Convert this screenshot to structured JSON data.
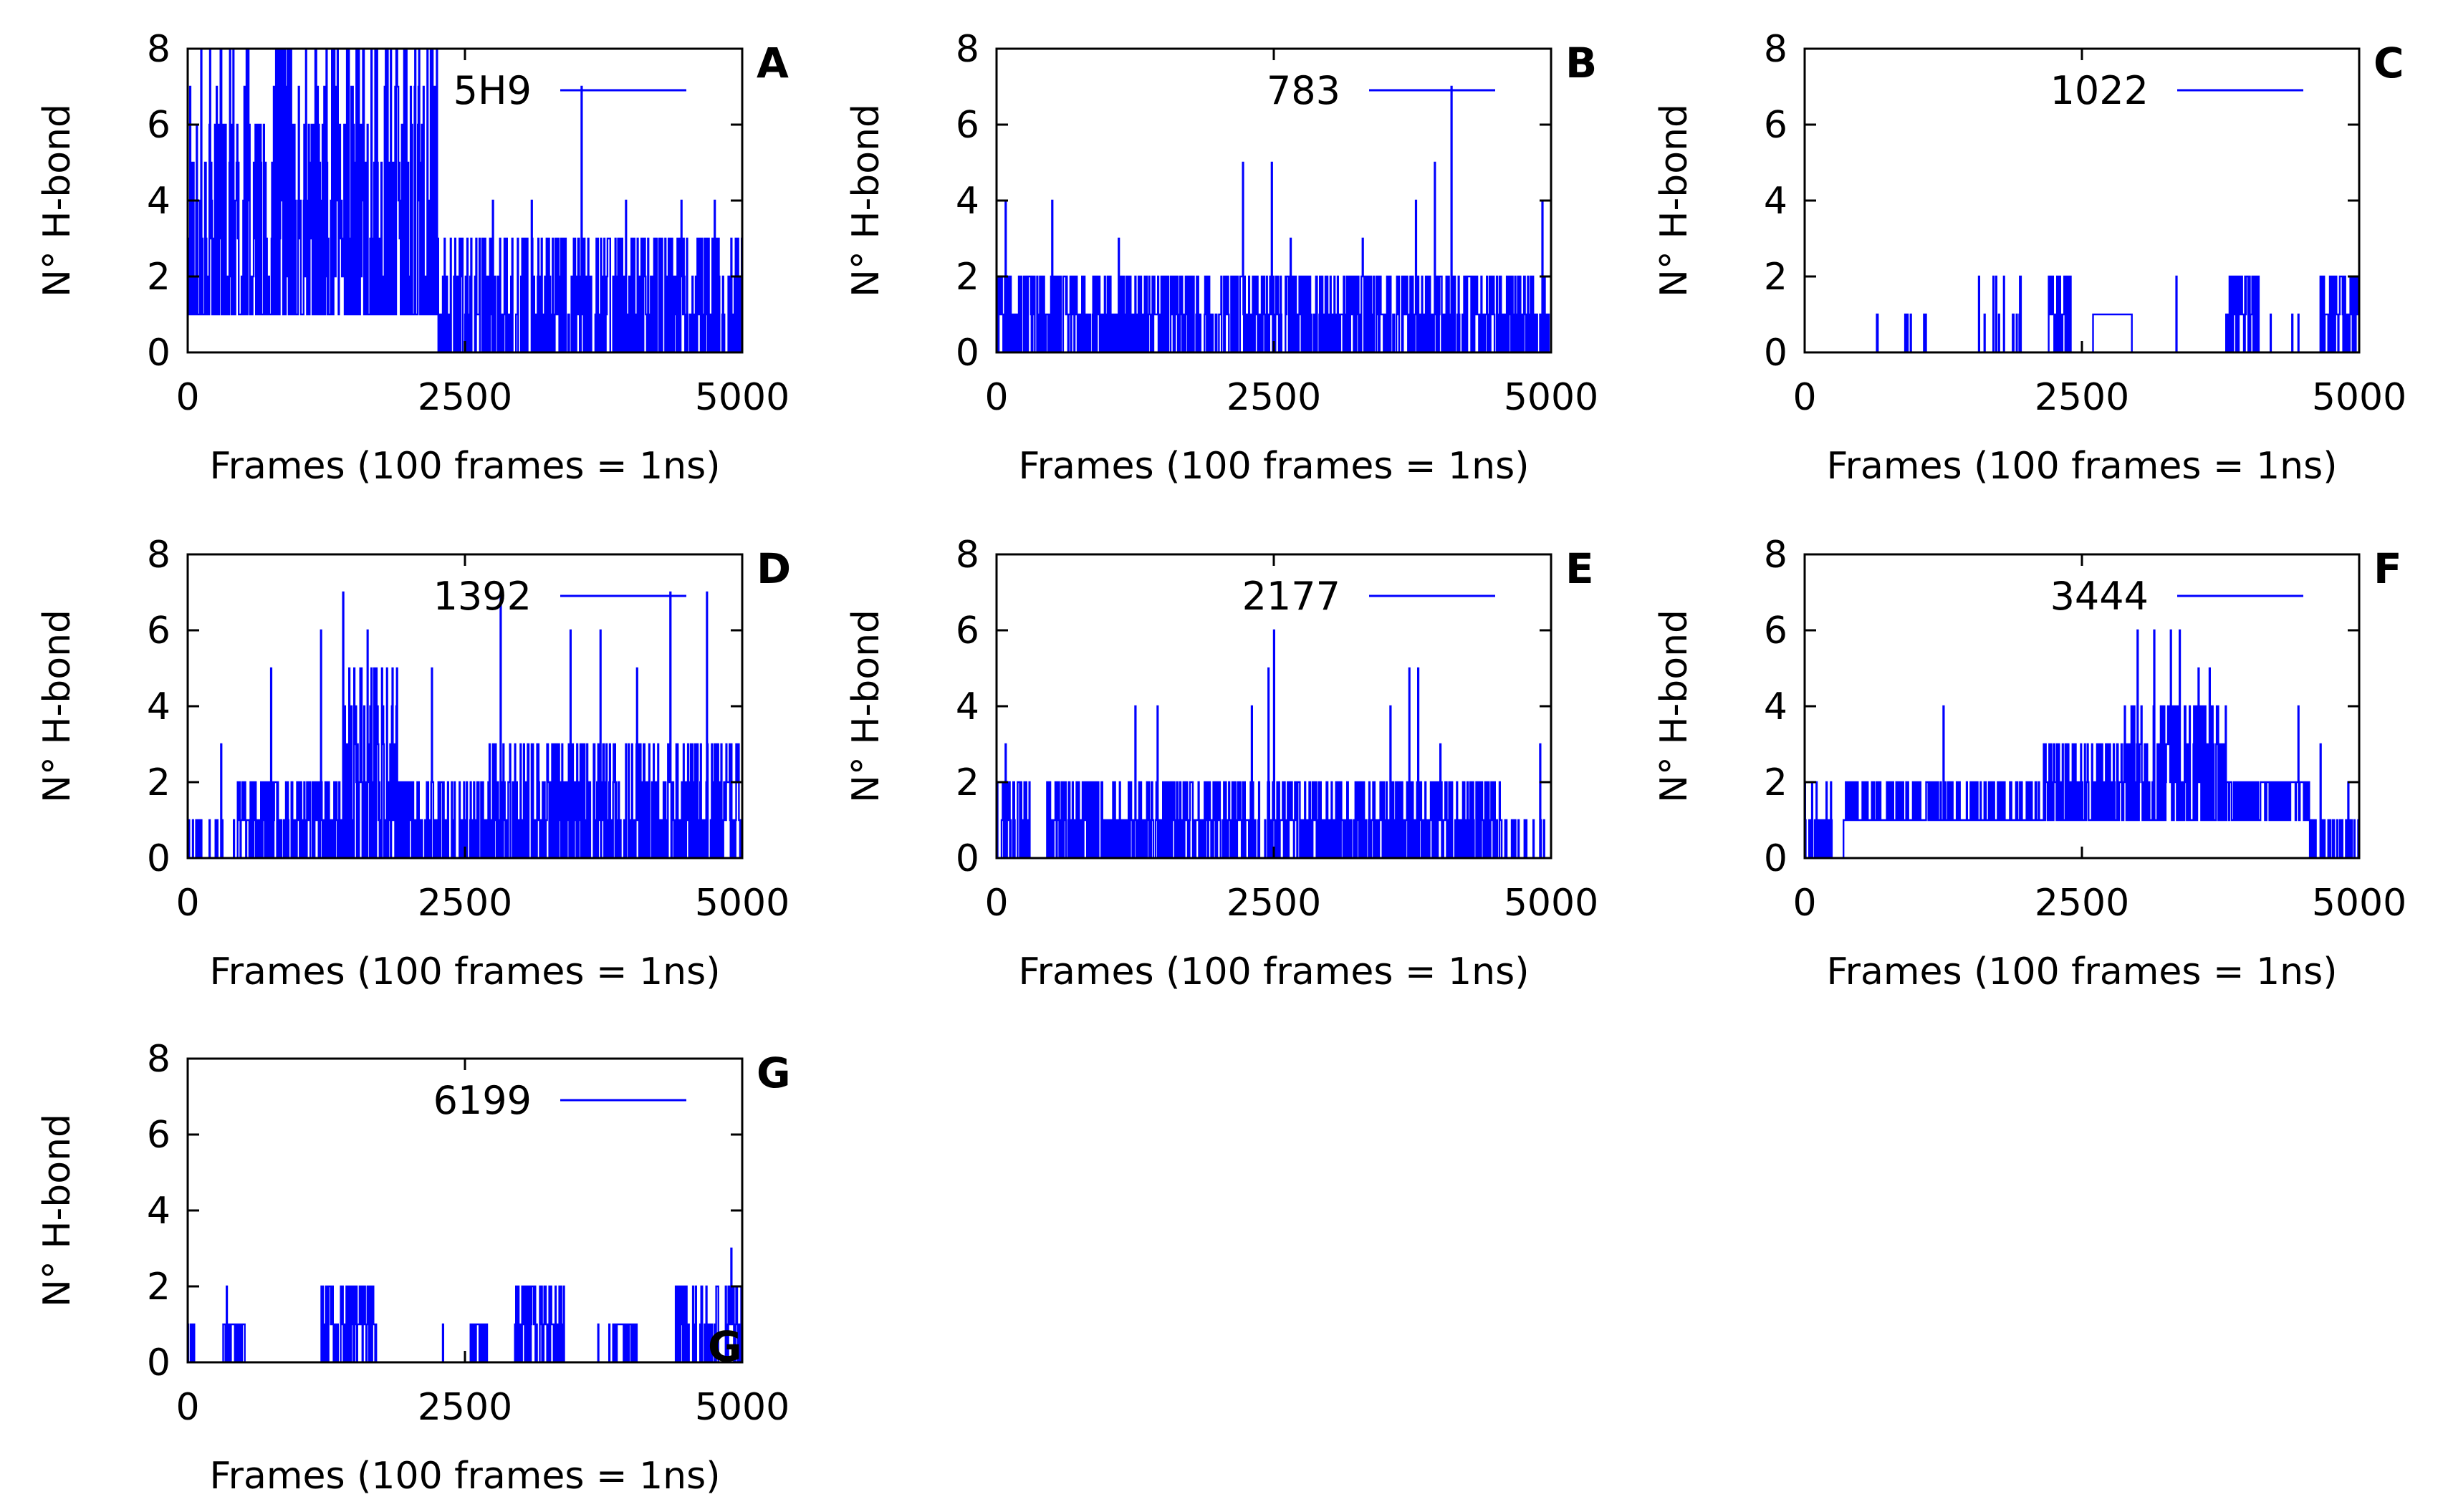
{
  "figure": {
    "series_color": "#0000ff",
    "axis_color": "#000000"
  },
  "chart_data": [
    {
      "panel": "A",
      "type": "line",
      "legend": "5H9",
      "xlabel": "Frames (100 frames = 1ns)",
      "ylabel": "N° H-bond",
      "xlim": [
        0,
        5000
      ],
      "ylim": [
        0,
        8
      ],
      "xticks": [
        "0",
        "2500",
        "5000"
      ],
      "yticks": [
        "0",
        "2",
        "4",
        "6",
        "8"
      ],
      "regimes": [
        {
          "from": 0,
          "to": 2250,
          "base": 1,
          "max": 8,
          "p": 0.6
        },
        {
          "from": 2250,
          "to": 5000,
          "base": 0,
          "max": 3,
          "p": 0.5
        }
      ],
      "spikes": [
        [
          120,
          8
        ],
        [
          380,
          8
        ],
        [
          900,
          8
        ],
        [
          1250,
          8
        ],
        [
          1800,
          8
        ],
        [
          2050,
          8
        ],
        [
          3550,
          7
        ],
        [
          2750,
          4
        ],
        [
          3100,
          4
        ],
        [
          4450,
          4
        ],
        [
          4750,
          4
        ],
        [
          3950,
          4
        ]
      ],
      "seed": 11
    },
    {
      "panel": "B",
      "type": "line",
      "legend": "783",
      "xlabel": "Frames (100 frames = 1ns)",
      "ylabel": "N° H-bond",
      "xlim": [
        0,
        5000
      ],
      "ylim": [
        0,
        8
      ],
      "xticks": [
        "0",
        "2500",
        "5000"
      ],
      "yticks": [
        "0",
        "2",
        "4",
        "6",
        "8"
      ],
      "regimes": [
        {
          "from": 0,
          "to": 5000,
          "base": 0,
          "max": 2,
          "p": 0.55
        }
      ],
      "spikes": [
        [
          80,
          4
        ],
        [
          500,
          4
        ],
        [
          2220,
          5
        ],
        [
          2480,
          5
        ],
        [
          3780,
          4
        ],
        [
          3950,
          5
        ],
        [
          4100,
          7
        ],
        [
          4920,
          4
        ],
        [
          2650,
          3
        ],
        [
          1100,
          3
        ],
        [
          3300,
          3
        ]
      ],
      "seed": 23
    },
    {
      "panel": "C",
      "type": "line",
      "legend": "1022",
      "xlabel": "Frames (100 frames = 1ns)",
      "ylabel": "N° H-bond",
      "xlim": [
        0,
        5000
      ],
      "ylim": [
        0,
        8
      ],
      "xticks": [
        "0",
        "2500",
        "5000"
      ],
      "yticks": [
        "0",
        "2",
        "4",
        "6",
        "8"
      ],
      "regimes": [
        {
          "from": 0,
          "to": 5000,
          "base": 0,
          "max": 0,
          "p": 0.0
        },
        {
          "from": 650,
          "to": 660,
          "base": 1,
          "max": 1,
          "p": 0.0
        },
        {
          "from": 900,
          "to": 1100,
          "base": 0,
          "max": 1,
          "p": 0.12
        },
        {
          "from": 1550,
          "to": 2000,
          "base": 0,
          "max": 2,
          "p": 0.2
        },
        {
          "from": 2200,
          "to": 2400,
          "base": 0,
          "max": 2,
          "p": 0.7
        },
        {
          "from": 2600,
          "to": 2950,
          "base": 1,
          "max": 1,
          "p": 0.3
        },
        {
          "from": 3800,
          "to": 4100,
          "base": 0,
          "max": 2,
          "p": 0.6
        },
        {
          "from": 4300,
          "to": 4400,
          "base": 0,
          "max": 1,
          "p": 0.2
        },
        {
          "from": 4650,
          "to": 5000,
          "base": 0,
          "max": 2,
          "p": 0.7
        }
      ],
      "spikes": [
        [
          1700,
          2
        ],
        [
          3350,
          2
        ],
        [
          4200,
          1
        ],
        [
          4450,
          1
        ]
      ],
      "seed": 31
    },
    {
      "panel": "D",
      "type": "line",
      "legend": "1392",
      "xlabel": "Frames (100 frames = 1ns)",
      "ylabel": "N° H-bond",
      "xlim": [
        0,
        5000
      ],
      "ylim": [
        0,
        8
      ],
      "xticks": [
        "0",
        "2500",
        "5000"
      ],
      "yticks": [
        "0",
        "2",
        "4",
        "6",
        "8"
      ],
      "regimes": [
        {
          "from": 0,
          "to": 450,
          "base": 0,
          "max": 1,
          "p": 0.15
        },
        {
          "from": 450,
          "to": 1400,
          "base": 0,
          "max": 2,
          "p": 0.5
        },
        {
          "from": 1400,
          "to": 1900,
          "base": 0,
          "max": 5,
          "p": 0.6
        },
        {
          "from": 1900,
          "to": 2700,
          "base": 0,
          "max": 2,
          "p": 0.5
        },
        {
          "from": 2700,
          "to": 5000,
          "base": 0,
          "max": 3,
          "p": 0.55
        }
      ],
      "spikes": [
        [
          1400,
          7
        ],
        [
          1200,
          6
        ],
        [
          1620,
          6
        ],
        [
          2820,
          7
        ],
        [
          3450,
          6
        ],
        [
          3720,
          6
        ],
        [
          4350,
          7
        ],
        [
          4680,
          7
        ],
        [
          300,
          3
        ],
        [
          750,
          5
        ],
        [
          4050,
          5
        ],
        [
          2200,
          5
        ]
      ],
      "seed": 47
    },
    {
      "panel": "E",
      "type": "line",
      "legend": "2177",
      "xlabel": "Frames (100 frames = 1ns)",
      "ylabel": "N° H-bond",
      "xlim": [
        0,
        5000
      ],
      "ylim": [
        0,
        8
      ],
      "xticks": [
        "0",
        "2500",
        "5000"
      ],
      "yticks": [
        "0",
        "2",
        "4",
        "6",
        "8"
      ],
      "regimes": [
        {
          "from": 0,
          "to": 300,
          "base": 0,
          "max": 2,
          "p": 0.5
        },
        {
          "from": 300,
          "to": 450,
          "base": 0,
          "max": 0,
          "p": 0.0
        },
        {
          "from": 450,
          "to": 4600,
          "base": 0,
          "max": 2,
          "p": 0.55
        },
        {
          "from": 4600,
          "to": 5000,
          "base": 0,
          "max": 1,
          "p": 0.1
        }
      ],
      "spikes": [
        [
          2500,
          6
        ],
        [
          2450,
          5
        ],
        [
          3720,
          5
        ],
        [
          3800,
          5
        ],
        [
          1250,
          4
        ],
        [
          1450,
          4
        ],
        [
          2300,
          4
        ],
        [
          3550,
          4
        ],
        [
          80,
          3
        ],
        [
          4900,
          3
        ],
        [
          4000,
          3
        ]
      ],
      "seed": 59
    },
    {
      "panel": "F",
      "type": "line",
      "legend": "3444",
      "xlabel": "Frames (100 frames = 1ns)",
      "ylabel": "N° H-bond",
      "xlim": [
        0,
        5000
      ],
      "ylim": [
        0,
        8
      ],
      "xticks": [
        "0",
        "2500",
        "5000"
      ],
      "yticks": [
        "0",
        "2",
        "4",
        "6",
        "8"
      ],
      "regimes": [
        {
          "from": 0,
          "to": 250,
          "base": 0,
          "max": 2,
          "p": 0.5
        },
        {
          "from": 250,
          "to": 350,
          "base": 0,
          "max": 0,
          "p": 0.0
        },
        {
          "from": 350,
          "to": 2150,
          "base": 1,
          "max": 2,
          "p": 0.3
        },
        {
          "from": 2150,
          "to": 2850,
          "base": 1,
          "max": 3,
          "p": 0.5
        },
        {
          "from": 2850,
          "to": 3800,
          "base": 1,
          "max": 4,
          "p": 0.6
        },
        {
          "from": 3800,
          "to": 4550,
          "base": 1,
          "max": 2,
          "p": 0.5
        },
        {
          "from": 4550,
          "to": 5000,
          "base": 0,
          "max": 1,
          "p": 0.2
        }
      ],
      "spikes": [
        [
          3000,
          6
        ],
        [
          3150,
          6
        ],
        [
          3300,
          6
        ],
        [
          3380,
          6
        ],
        [
          3650,
          5
        ],
        [
          3550,
          5
        ],
        [
          1250,
          4
        ],
        [
          4450,
          4
        ],
        [
          4650,
          3
        ],
        [
          4900,
          2
        ]
      ],
      "seed": 71
    },
    {
      "panel": "G",
      "type": "line",
      "legend": "6199",
      "xlabel": "Frames (100 frames = 1ns)",
      "ylabel": "N° H-bond",
      "xlim": [
        0,
        5000
      ],
      "ylim": [
        0,
        8
      ],
      "xticks": [
        "0",
        "2500",
        "5000"
      ],
      "yticks": [
        "0",
        "2",
        "4",
        "6",
        "8"
      ],
      "regimes": [
        {
          "from": 0,
          "to": 5000,
          "base": 0,
          "max": 0,
          "p": 0.0
        },
        {
          "from": 0,
          "to": 60,
          "base": 0,
          "max": 1,
          "p": 0.6
        },
        {
          "from": 320,
          "to": 520,
          "base": 0,
          "max": 1,
          "p": 0.6
        },
        {
          "from": 1200,
          "to": 1700,
          "base": 0,
          "max": 2,
          "p": 0.6
        },
        {
          "from": 2550,
          "to": 2700,
          "base": 0,
          "max": 1,
          "p": 0.5
        },
        {
          "from": 2950,
          "to": 3400,
          "base": 0,
          "max": 2,
          "p": 0.6
        },
        {
          "from": 3800,
          "to": 4050,
          "base": 0,
          "max": 1,
          "p": 0.6
        },
        {
          "from": 4400,
          "to": 4800,
          "base": 0,
          "max": 2,
          "p": 0.5
        },
        {
          "from": 4850,
          "to": 5000,
          "base": 0,
          "max": 2,
          "p": 0.6
        }
      ],
      "spikes": [
        [
          350,
          2
        ],
        [
          2300,
          1
        ],
        [
          3700,
          1
        ],
        [
          4900,
          3
        ]
      ],
      "seed": 83
    }
  ]
}
